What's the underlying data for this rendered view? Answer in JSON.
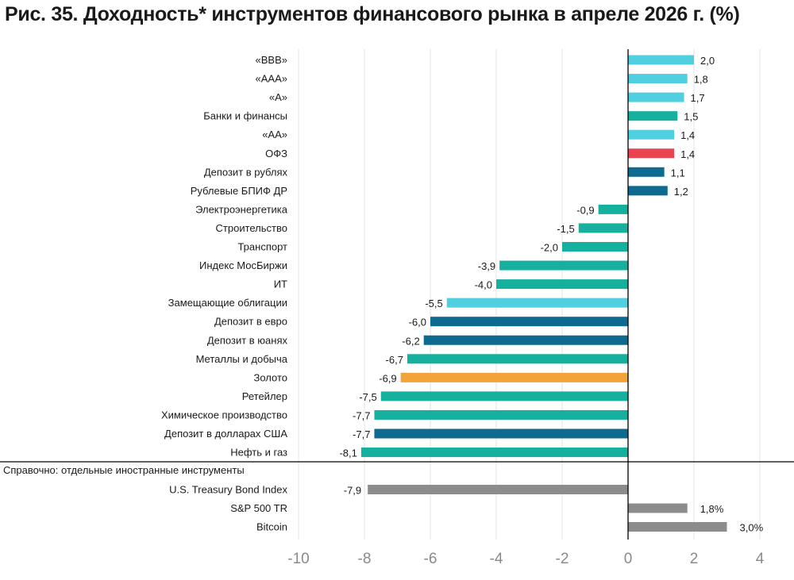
{
  "title": "Рис. 35. Доходность* инструментов финансового рынка в апреле 2026 г. (%)",
  "colors": {
    "light_blue": "#4fcfe0",
    "teal": "#16b09e",
    "red": "#e8434f",
    "dark_blue": "#0f6a8f",
    "orange": "#f2a33a",
    "gray": "#8c8c8c",
    "grid": "#e3e3e3",
    "axis": "#000000"
  },
  "chart_data": {
    "type": "bar",
    "orientation": "horizontal",
    "xlim": [
      -10,
      4
    ],
    "x_ticks": [
      -10,
      -8,
      -6,
      -4,
      -2,
      0,
      2,
      4
    ],
    "x_tick_labels": [
      "-10",
      "-8",
      "-6",
      "-4",
      "-2",
      "0",
      "2",
      "4"
    ],
    "grid": true,
    "categories": [
      "«BBB»",
      "«AAA»",
      "«A»",
      "Банки и финансы",
      "«AA»",
      "ОФЗ",
      "Депозит в рублях",
      "Рублевые БПИФ ДР",
      "Электроэнергетика",
      "Строительство",
      "Транспорт",
      "Индекс МосБиржи",
      "ИТ",
      "Замещающие облигации",
      "Депозит в евро",
      "Депозит в юанях",
      "Металлы и добыча",
      "Золото",
      "Ретейлер",
      "Химическое производство",
      "Депозит в долларах США",
      "Нефть и газ"
    ],
    "values": [
      2.0,
      1.8,
      1.7,
      1.5,
      1.4,
      1.4,
      1.1,
      1.2,
      -0.9,
      -1.5,
      -2.0,
      -3.9,
      -4.0,
      -5.5,
      -6.0,
      -6.2,
      -6.7,
      -6.9,
      -7.5,
      -7.7,
      -7.7,
      -8.1
    ],
    "value_labels": [
      "2,0",
      "1,8",
      "1,7",
      "1,5",
      "1,4",
      "1,4",
      "1,1",
      "1,2",
      "-0,9",
      "-1,5",
      "-2,0",
      "-3,9",
      "-4,0",
      "-5,5",
      "-6,0",
      "-6,2",
      "-6,7",
      "-6,9",
      "-7,5",
      "-7,7",
      "-7,7",
      "-8,1"
    ],
    "colors": [
      "light_blue",
      "light_blue",
      "light_blue",
      "teal",
      "light_blue",
      "red",
      "dark_blue",
      "dark_blue",
      "teal",
      "teal",
      "teal",
      "teal",
      "teal",
      "light_blue",
      "dark_blue",
      "dark_blue",
      "teal",
      "orange",
      "teal",
      "teal",
      "dark_blue",
      "teal"
    ],
    "reference_note": "Справочно: отдельные иностранные инструменты",
    "reference_categories": [
      "U.S. Treasury Bond Index",
      "S&P 500 TR",
      "Bitcoin"
    ],
    "reference_values": [
      -7.9,
      1.8,
      3.0
    ],
    "reference_value_labels": [
      "-7,9",
      "1,8%",
      "3,0%"
    ],
    "reference_colors": [
      "gray",
      "gray",
      "gray"
    ]
  }
}
